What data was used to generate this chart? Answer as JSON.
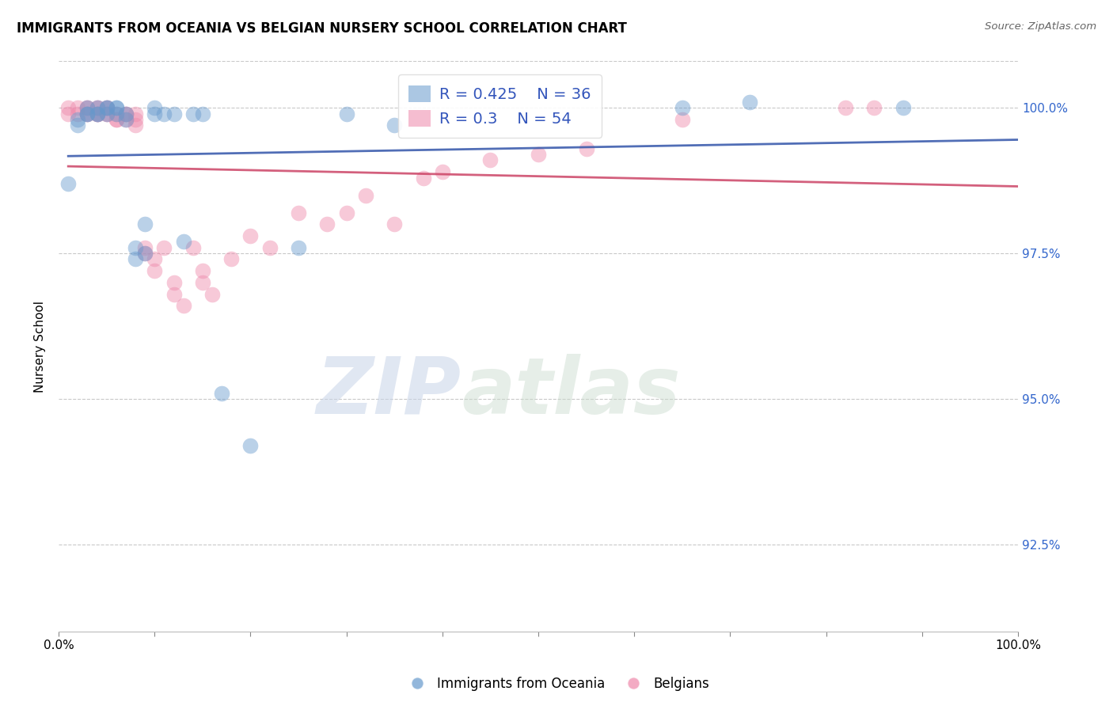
{
  "title": "IMMIGRANTS FROM OCEANIA VS BELGIAN NURSERY SCHOOL CORRELATION CHART",
  "source": "Source: ZipAtlas.com",
  "ylabel": "Nursery School",
  "xlim": [
    0.0,
    1.0
  ],
  "ylim": [
    0.91,
    1.008
  ],
  "xticks": [
    0.0,
    0.1,
    0.2,
    0.3,
    0.4,
    0.5,
    0.6,
    0.7,
    0.8,
    0.9,
    1.0
  ],
  "xticklabels": [
    "0.0%",
    "",
    "",
    "",
    "",
    "",
    "",
    "",
    "",
    "",
    "100.0%"
  ],
  "yticks": [
    0.925,
    0.95,
    0.975,
    1.0
  ],
  "yticklabels": [
    "92.5%",
    "95.0%",
    "97.5%",
    "100.0%"
  ],
  "blue_color": "#6699CC",
  "pink_color": "#EE88AA",
  "blue_line_color": "#3355AA",
  "pink_line_color": "#CC4466",
  "blue_R": 0.425,
  "blue_N": 36,
  "pink_R": 0.3,
  "pink_N": 54,
  "legend_label_blue": "Immigrants from Oceania",
  "legend_label_pink": "Belgians",
  "watermark_zip": "ZIP",
  "watermark_atlas": "atlas",
  "blue_scatter_x": [
    0.01,
    0.02,
    0.02,
    0.03,
    0.03,
    0.03,
    0.04,
    0.04,
    0.04,
    0.05,
    0.05,
    0.05,
    0.06,
    0.06,
    0.06,
    0.07,
    0.07,
    0.08,
    0.08,
    0.09,
    0.09,
    0.1,
    0.1,
    0.11,
    0.12,
    0.13,
    0.14,
    0.15,
    0.17,
    0.2,
    0.25,
    0.3,
    0.35,
    0.65,
    0.72,
    0.88
  ],
  "blue_scatter_y": [
    0.987,
    0.997,
    0.998,
    0.999,
    0.999,
    1.0,
    0.999,
    0.999,
    1.0,
    0.999,
    1.0,
    1.0,
    0.999,
    1.0,
    1.0,
    0.998,
    0.999,
    0.974,
    0.976,
    0.98,
    0.975,
    0.999,
    1.0,
    0.999,
    0.999,
    0.977,
    0.999,
    0.999,
    0.951,
    0.942,
    0.976,
    0.999,
    0.997,
    1.0,
    1.001,
    1.0
  ],
  "pink_scatter_x": [
    0.01,
    0.01,
    0.02,
    0.02,
    0.03,
    0.03,
    0.03,
    0.03,
    0.04,
    0.04,
    0.04,
    0.04,
    0.04,
    0.05,
    0.05,
    0.05,
    0.05,
    0.06,
    0.06,
    0.06,
    0.07,
    0.07,
    0.07,
    0.08,
    0.08,
    0.08,
    0.09,
    0.09,
    0.1,
    0.1,
    0.11,
    0.12,
    0.12,
    0.13,
    0.14,
    0.15,
    0.15,
    0.16,
    0.18,
    0.2,
    0.22,
    0.25,
    0.28,
    0.3,
    0.32,
    0.35,
    0.38,
    0.4,
    0.45,
    0.5,
    0.55,
    0.65,
    0.82,
    0.85
  ],
  "pink_scatter_y": [
    0.999,
    1.0,
    0.999,
    1.0,
    0.999,
    0.999,
    1.0,
    1.0,
    0.999,
    0.999,
    0.999,
    1.0,
    1.0,
    0.999,
    0.999,
    1.0,
    1.0,
    0.998,
    0.998,
    0.999,
    0.998,
    0.999,
    0.999,
    0.997,
    0.998,
    0.999,
    0.975,
    0.976,
    0.972,
    0.974,
    0.976,
    0.968,
    0.97,
    0.966,
    0.976,
    0.97,
    0.972,
    0.968,
    0.974,
    0.978,
    0.976,
    0.982,
    0.98,
    0.982,
    0.985,
    0.98,
    0.988,
    0.989,
    0.991,
    0.992,
    0.993,
    0.998,
    1.0,
    1.0
  ]
}
